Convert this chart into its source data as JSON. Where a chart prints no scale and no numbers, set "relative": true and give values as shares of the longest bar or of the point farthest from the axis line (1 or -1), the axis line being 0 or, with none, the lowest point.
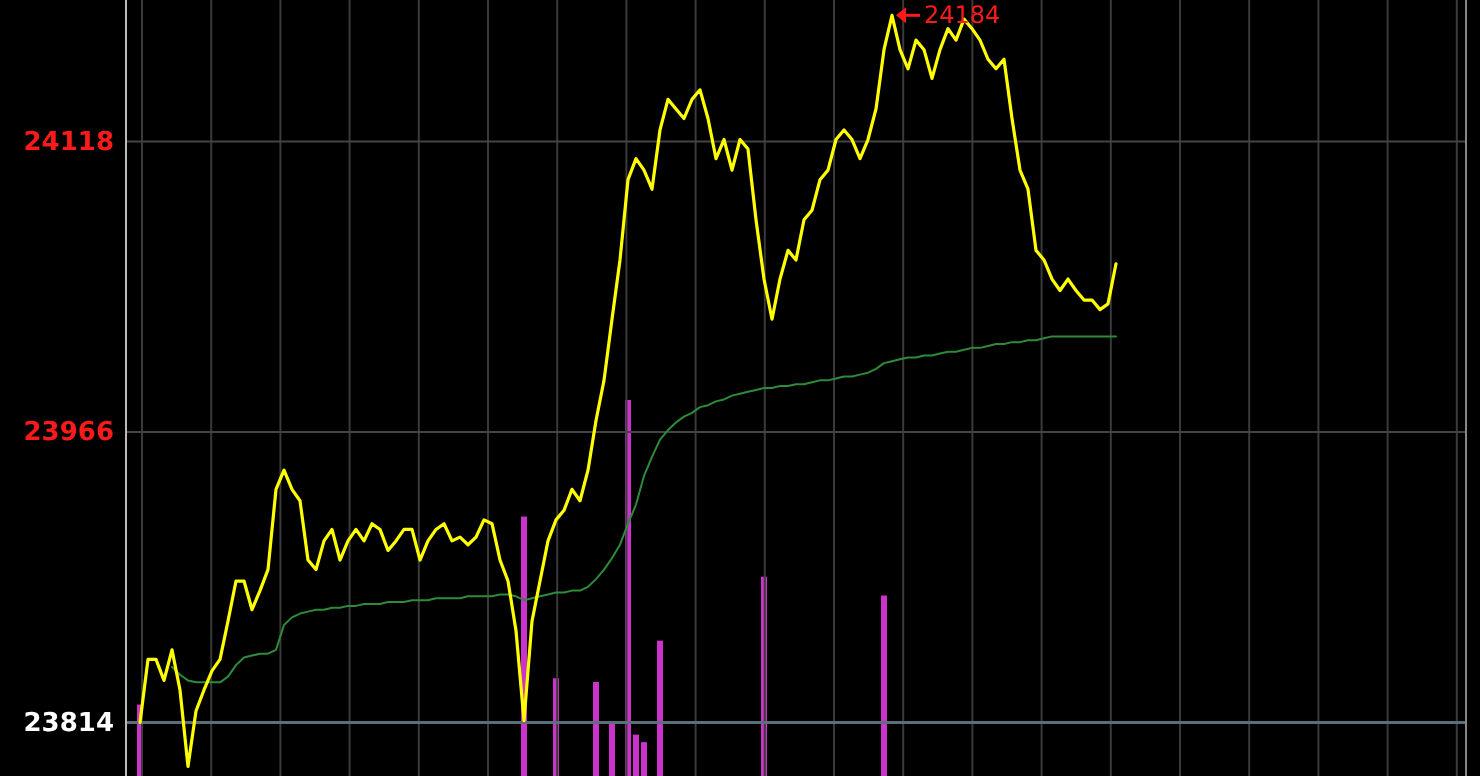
{
  "chart_data": [
    {
      "type": "line",
      "tick_labels": "y",
      "grid": true,
      "categories": [
        null,
        null,
        null,
        null,
        null,
        null,
        null,
        null,
        null,
        null,
        null,
        null,
        null,
        null,
        null,
        null,
        null,
        null,
        null,
        null,
        null,
        null,
        null,
        null,
        null,
        null,
        null,
        null,
        null,
        null,
        null,
        null,
        null,
        null,
        null,
        null,
        null,
        null,
        null,
        null,
        null,
        null,
        null,
        null,
        null,
        null,
        null,
        null,
        null,
        null,
        null,
        null,
        null,
        null,
        null,
        null,
        null,
        null,
        null,
        null,
        null,
        null,
        null,
        null,
        null,
        null,
        null,
        null,
        null,
        null,
        null,
        null,
        null,
        null,
        null,
        null,
        null,
        null,
        null,
        null,
        null,
        null,
        null,
        null,
        null,
        null,
        null,
        null,
        null,
        null,
        null,
        null,
        null,
        null,
        null,
        null,
        null,
        null,
        null,
        null,
        null,
        null,
        null,
        null,
        null,
        null,
        null,
        null,
        null,
        null,
        null,
        null,
        null,
        null,
        null,
        null,
        null,
        null,
        null,
        null,
        null,
        null,
        null,
        null,
        null,
        null,
        null,
        null,
        null,
        null,
        null,
        null,
        null,
        null,
        null,
        null,
        null,
        null,
        null,
        null,
        null,
        null,
        null,
        null,
        null,
        null,
        null,
        null,
        null,
        null,
        null,
        null,
        null,
        null,
        null,
        null,
        null,
        null,
        null,
        null,
        null,
        null,
        null,
        null,
        null,
        null
      ],
      "ylim": [
        23786,
        24192
      ],
      "yticks": [
        23814,
        23966,
        24118
      ],
      "ref_lines": [
        {
          "axis": "y",
          "value": 23814,
          "color": "#5a6f7a"
        }
      ],
      "annotations": [
        {
          "text": "24184",
          "y": 24184
        }
      ],
      "series": [
        {
          "color": "#2e8b3a",
          "values": [
            null,
            null,
            null,
            null,
            23843,
            23839,
            23836,
            23835,
            23835,
            23835,
            23835,
            23838,
            23844,
            23848,
            23849,
            23850,
            23850,
            23852,
            23865,
            23869,
            23871,
            23872,
            23873,
            23873,
            23874,
            23874,
            23875,
            23875,
            23876,
            23876,
            23876,
            23877,
            23877,
            23877,
            23878,
            23878,
            23878,
            23879,
            23879,
            23879,
            23879,
            23880,
            23880,
            23880,
            23880,
            23881,
            23881,
            23880,
            23878,
            23879,
            23880,
            23881,
            23882,
            23882,
            23883,
            23883,
            23885,
            23889,
            23894,
            23900,
            23907,
            23918,
            23928,
            23943,
            23953,
            23962,
            23967,
            23971,
            23974,
            23976,
            23979,
            23980,
            23982,
            23983,
            23985,
            23986,
            23987,
            23988,
            23989,
            23989,
            23990,
            23990,
            23991,
            23991,
            23992,
            23993,
            23993,
            23994,
            23995,
            23995,
            23996,
            23997,
            23999,
            24002,
            24003,
            24004,
            24005,
            24005,
            24006,
            24006,
            24007,
            24008,
            24008,
            24009,
            24010,
            24010,
            24011,
            24012,
            24012,
            24013,
            24013,
            24014,
            24014,
            24015,
            24016,
            24016,
            24016,
            24016,
            24016,
            24016,
            24016,
            24016,
            24016,
            null,
            null,
            null,
            null,
            null,
            null,
            null,
            null,
            null,
            null,
            null,
            null,
            null,
            null,
            null,
            null,
            null,
            null,
            null,
            null,
            null,
            null,
            null,
            null,
            null,
            null,
            null,
            null,
            null,
            null,
            null,
            null,
            null,
            null,
            null,
            null,
            null,
            null,
            null,
            null,
            null,
            null,
            null
          ]
        },
        {
          "color": "#ffff00",
          "values": [
            23814,
            23847,
            23847,
            23836,
            23852,
            23831,
            23791,
            23820,
            23831,
            23841,
            23847,
            23867,
            23888,
            23888,
            23873,
            23883,
            23894,
            23936,
            23946,
            23936,
            23930,
            23899,
            23894,
            23909,
            23915,
            23899,
            23909,
            23915,
            23909,
            23918,
            23915,
            23904,
            23909,
            23915,
            23915,
            23899,
            23909,
            23915,
            23918,
            23909,
            23911,
            23907,
            23911,
            23920,
            23918,
            23899,
            23888,
            23862,
            23815,
            23867,
            23888,
            23909,
            23920,
            23925,
            23936,
            23930,
            23946,
            23972,
            23993,
            24025,
            24056,
            24098,
            24109,
            24103,
            24093,
            24124,
            24140,
            24135,
            24130,
            24140,
            24145,
            24130,
            24109,
            24119,
            24103,
            24119,
            24114,
            24077,
            24046,
            24025,
            24046,
            24061,
            24056,
            24077,
            24082,
            24098,
            24103,
            24119,
            24124,
            24119,
            24109,
            24119,
            24135,
            24166,
            24184,
            24166,
            24156,
            24171,
            24166,
            24151,
            24166,
            24177,
            24171,
            24182,
            24177,
            24171,
            24161,
            24156,
            24161,
            24130,
            24103,
            24093,
            24061,
            24056,
            24046,
            24040,
            24046,
            24040,
            24035,
            24035,
            24030,
            24033,
            24054,
            null,
            null,
            null,
            null,
            null,
            null,
            null,
            null,
            null,
            null,
            null,
            null,
            null,
            null,
            null,
            null,
            null,
            null,
            null,
            null,
            null,
            null,
            null,
            null,
            null,
            null,
            null,
            null,
            null,
            null,
            null,
            null,
            null,
            null,
            null,
            null,
            null,
            null,
            null,
            null,
            null,
            null,
            null
          ]
        }
      ]
    },
    {
      "type": "bar",
      "relative": true,
      "color": "#cc33cc",
      "categories": [
        null,
        null,
        null,
        null,
        null,
        null,
        null,
        null,
        null,
        null,
        null,
        null,
        null,
        null,
        null,
        null,
        null,
        null,
        null,
        null,
        null,
        null,
        null,
        null,
        null,
        null,
        null,
        null,
        null,
        null,
        null,
        null,
        null,
        null,
        null,
        null,
        null,
        null,
        null,
        null,
        null,
        null,
        null,
        null,
        null,
        null,
        null,
        null,
        null,
        null,
        null,
        null,
        null,
        null,
        null,
        null,
        null,
        null,
        null,
        null,
        null,
        null,
        null,
        null,
        null,
        null,
        null,
        null,
        null,
        null,
        null,
        null,
        null,
        null,
        null,
        null,
        null,
        null,
        null,
        null,
        null,
        null,
        null,
        null,
        null,
        null,
        null,
        null,
        null,
        null,
        null,
        null,
        null,
        null,
        null,
        null,
        null,
        null,
        null,
        null,
        null,
        null,
        null,
        null,
        null,
        null,
        null,
        null,
        null,
        null,
        null,
        null,
        null,
        null,
        null,
        null,
        null,
        null,
        null,
        null,
        null,
        null,
        null,
        null,
        null,
        null,
        null,
        null,
        null,
        null,
        null,
        null,
        null,
        null,
        null,
        null,
        null,
        null,
        null,
        null,
        null,
        null,
        null,
        null,
        null,
        null,
        null,
        null,
        null,
        null,
        null,
        null,
        null,
        null,
        null,
        null,
        null,
        null,
        null,
        null,
        null,
        null,
        null,
        null,
        null,
        null
      ],
      "values": [
        0.19,
        null,
        null,
        null,
        null,
        null,
        null,
        null,
        null,
        null,
        null,
        null,
        null,
        null,
        null,
        null,
        null,
        null,
        null,
        null,
        null,
        null,
        null,
        null,
        null,
        null,
        null,
        null,
        null,
        null,
        null,
        null,
        null,
        null,
        null,
        null,
        null,
        null,
        null,
        null,
        null,
        null,
        null,
        null,
        null,
        null,
        null,
        null,
        0.69,
        null,
        null,
        null,
        0.26,
        null,
        null,
        null,
        null,
        0.25,
        null,
        0.14,
        null,
        1,
        0.11,
        0.09,
        null,
        0.36,
        null,
        null,
        null,
        null,
        null,
        null,
        null,
        null,
        null,
        null,
        null,
        null,
        0.53,
        null,
        null,
        null,
        null,
        null,
        null,
        null,
        null,
        null,
        null,
        null,
        null,
        null,
        null,
        0.48,
        null,
        null,
        null,
        null,
        null,
        null,
        null,
        null,
        null,
        null,
        null,
        null,
        null,
        null,
        null,
        null,
        null,
        null,
        null,
        null,
        null,
        null,
        null,
        null,
        null,
        null,
        null,
        null,
        null,
        null,
        null,
        null,
        null,
        null,
        null,
        null,
        null,
        null,
        null,
        null,
        null,
        null,
        null,
        null,
        null,
        null,
        null,
        null,
        null,
        null,
        null,
        null,
        null,
        null,
        null,
        null,
        null,
        null,
        null,
        null,
        null,
        null,
        null,
        null,
        null,
        null,
        null,
        null,
        null,
        null,
        null,
        null
      ]
    }
  ]
}
